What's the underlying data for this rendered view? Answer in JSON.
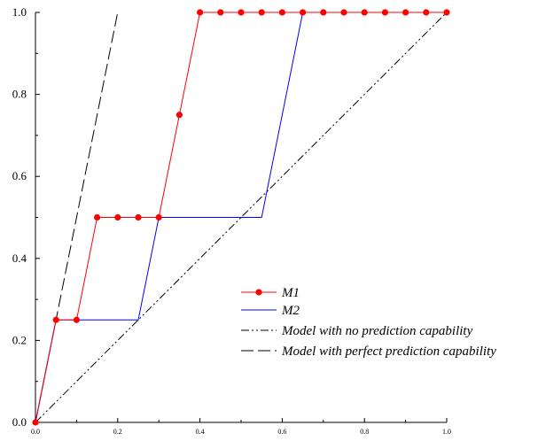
{
  "chart_data": {
    "type": "line",
    "title": "",
    "xlabel": "",
    "ylabel": "",
    "xlim": [
      0,
      1.0
    ],
    "ylim": [
      0,
      1.0
    ],
    "grid": false,
    "legend_position": "bottom-right",
    "x_ticks": [
      {
        "value": 0.0,
        "label": "0.0"
      },
      {
        "value": 0.2,
        "label": "0.2"
      },
      {
        "value": 0.4,
        "label": "0.4"
      },
      {
        "value": 0.6,
        "label": "0.6"
      },
      {
        "value": 0.8,
        "label": "0.8"
      },
      {
        "value": 1.0,
        "label": "1.0"
      }
    ],
    "y_ticks": [
      {
        "value": 0.0,
        "label": "0.0"
      },
      {
        "value": 0.2,
        "label": "0.2"
      },
      {
        "value": 0.4,
        "label": "0.4"
      },
      {
        "value": 0.6,
        "label": "0.6"
      },
      {
        "value": 0.8,
        "label": "0.8"
      },
      {
        "value": 1.0,
        "label": "1.0"
      }
    ],
    "series": [
      {
        "name": "M1",
        "color": "#ff0000",
        "line_style": "solid",
        "markers": true,
        "x": [
          0.0,
          0.05,
          0.1,
          0.15,
          0.2,
          0.25,
          0.3,
          0.35,
          0.4,
          0.45,
          0.5,
          0.55,
          0.6,
          0.65,
          0.7,
          0.75,
          0.8,
          0.85,
          0.9,
          0.95,
          1.0
        ],
        "y": [
          0.0,
          0.25,
          0.25,
          0.5,
          0.5,
          0.5,
          0.5,
          0.75,
          1.0,
          1.0,
          1.0,
          1.0,
          1.0,
          1.0,
          1.0,
          1.0,
          1.0,
          1.0,
          1.0,
          1.0,
          1.0
        ]
      },
      {
        "name": "M2",
        "color": "#0000ff",
        "line_style": "solid",
        "markers": false,
        "x": [
          0.0,
          0.05,
          0.25,
          0.3,
          0.55,
          0.65,
          1.0
        ],
        "y": [
          0.0,
          0.25,
          0.25,
          0.5,
          0.5,
          1.0,
          1.0
        ]
      },
      {
        "name": "Model with no prediction capability",
        "color": "#000000",
        "line_style": "dash-dot-dot",
        "markers": false,
        "x": [
          0.0,
          1.0
        ],
        "y": [
          0.0,
          1.0
        ]
      },
      {
        "name": "Model with perfect prediction capability",
        "color": "#000000",
        "line_style": "long-dash",
        "markers": false,
        "x": [
          0.0,
          0.2
        ],
        "y": [
          0.0,
          1.0
        ]
      }
    ]
  }
}
